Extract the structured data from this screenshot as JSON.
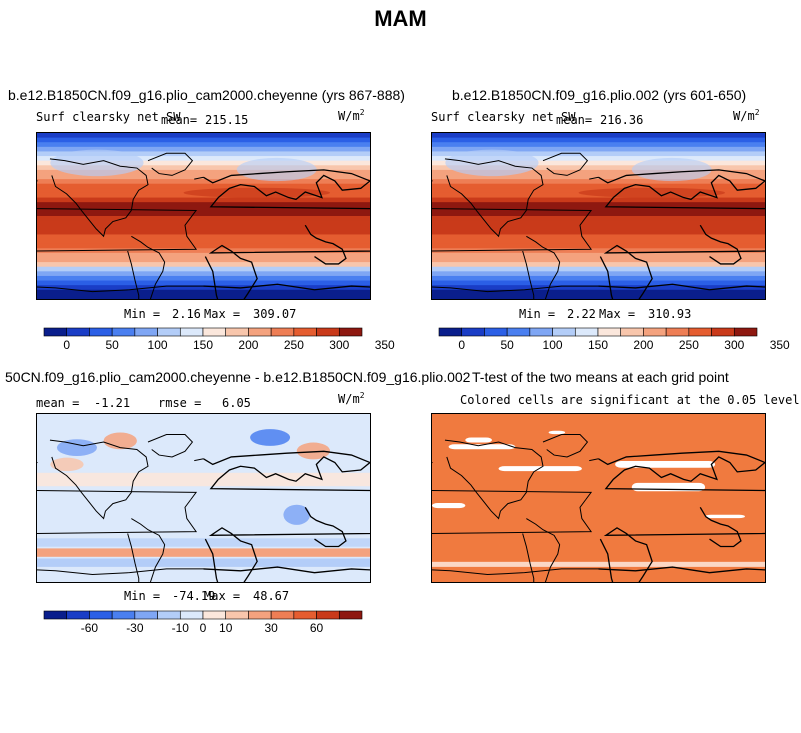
{
  "figure": {
    "title": "MAM"
  },
  "colors": {
    "scale": [
      "#0a1e8c",
      "#1a3dc6",
      "#2b5fe6",
      "#4a7ff0",
      "#7fa6f4",
      "#b3cdf8",
      "#dce9fb",
      "#fbe7dc",
      "#f8c6ac",
      "#f4a27e",
      "#ee7e55",
      "#e55d30",
      "#c93a1a",
      "#8e1810"
    ],
    "land_line": "#000000",
    "sig_fill": "#f07a3f"
  },
  "panels": [
    {
      "title": "b.e12.B1850CN.f09_g16.plio_cam2000.cheyenne (yrs 867-888)",
      "field_label": "Surf clearsky net SW",
      "mean_label": "mean=",
      "mean_value": "215.15",
      "units": "W/m",
      "units_exp": "2",
      "min_label": "Min =",
      "min_value": "2.16",
      "max_label": "Max =",
      "max_value": "309.07",
      "colorbar_ticks": [
        "0",
        "50",
        "100",
        "150",
        "200",
        "250",
        "300",
        "350"
      ]
    },
    {
      "title": "b.e12.B1850CN.f09_g16.plio.002 (yrs 601-650)",
      "field_label": "Surf clearsky net SW",
      "mean_label": "mean=",
      "mean_value": "216.36",
      "units": "W/m",
      "units_exp": "2",
      "min_label": "Min =",
      "min_value": "2.22",
      "max_label": "Max =",
      "max_value": "310.93",
      "colorbar_ticks": [
        "0",
        "50",
        "100",
        "150",
        "200",
        "250",
        "300",
        "350"
      ]
    },
    {
      "title": "50CN.f09_g16.plio_cam2000.cheyenne - b.e12.B1850CN.f09_g16.plio.002",
      "mean_label": "mean =",
      "mean_value": "-1.21",
      "rmse_label": "rmse =",
      "rmse_value": "6.05",
      "units": "W/m",
      "units_exp": "2",
      "min_label": "Min =",
      "min_value": "-74.19",
      "max_label": "Max =",
      "max_value": "48.67",
      "colorbar_ticks": [
        "-60",
        "-30",
        "-10",
        "0",
        "10",
        "30",
        "60"
      ]
    },
    {
      "title": "T-test of the two means at each grid point",
      "subtitle": "Colored cells are significant at the 0.05 level"
    }
  ],
  "chart_data": [
    {
      "type": "heatmap",
      "title": "b.e12.B1850CN.f09_g16.plio_cam2000.cheyenne (yrs 867-888)",
      "variable": "Surf clearsky net SW",
      "units": "W/m2",
      "season": "MAM",
      "mean": 215.15,
      "min": 2.16,
      "max": 309.07,
      "colorbar_levels": [
        0,
        25,
        50,
        75,
        100,
        125,
        150,
        175,
        200,
        225,
        250,
        275,
        300,
        325,
        350
      ]
    },
    {
      "type": "heatmap",
      "title": "b.e12.B1850CN.f09_g16.plio.002 (yrs 601-650)",
      "variable": "Surf clearsky net SW",
      "units": "W/m2",
      "season": "MAM",
      "mean": 216.36,
      "min": 2.22,
      "max": 310.93,
      "colorbar_levels": [
        0,
        25,
        50,
        75,
        100,
        125,
        150,
        175,
        200,
        225,
        250,
        275,
        300,
        325,
        350
      ]
    },
    {
      "type": "heatmap",
      "title": "50CN.f09_g16.plio_cam2000.cheyenne - b.e12.B1850CN.f09_g16.plio.002",
      "units": "W/m2",
      "mean": -1.21,
      "rmse": 6.05,
      "min": -74.19,
      "max": 48.67,
      "colorbar_levels": [
        -80,
        -60,
        -45,
        -30,
        -20,
        -10,
        -5,
        0,
        5,
        10,
        20,
        30,
        45,
        60,
        80
      ]
    },
    {
      "type": "heatmap",
      "title": "T-test of the two means at each grid point",
      "note": "Colored cells are significant at the 0.05 level",
      "significance_level": 0.05
    }
  ]
}
